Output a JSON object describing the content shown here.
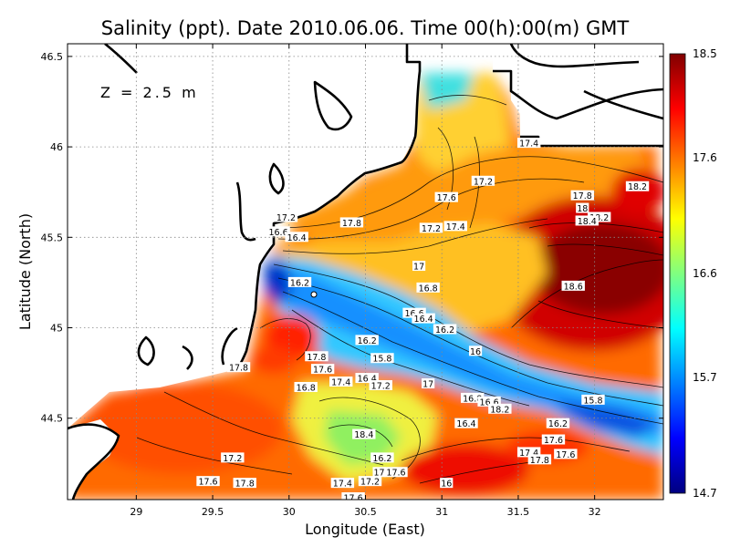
{
  "chart_data": {
    "type": "heatmap",
    "title": "Salinity (ppt). Date 2010.06.06. Time 00(h):00(m) GMT",
    "annotation": "Z = 2.5 m",
    "xlabel": "Longitude (East)",
    "ylabel": "Latitude (North)",
    "xlim": [
      28.55,
      32.45
    ],
    "ylim": [
      44.05,
      46.57
    ],
    "x_ticks": [
      29,
      29.5,
      30,
      30.5,
      31,
      31.5,
      32
    ],
    "x_tick_labels": [
      "29",
      "29.5",
      "30",
      "30.5",
      "31",
      "31.5",
      "32"
    ],
    "y_ticks": [
      44.5,
      45,
      45.5,
      46,
      46.5
    ],
    "y_tick_labels": [
      "44.5",
      "45",
      "45.5",
      "46",
      "46.5"
    ],
    "grid": true,
    "colorbar": {
      "min": 14.7,
      "max": 18.5,
      "ticks": [
        14.7,
        15.7,
        16.6,
        17.6,
        18.5
      ],
      "tick_labels": [
        "14.7",
        "15.7",
        "16.6",
        "17.6",
        "18.5"
      ],
      "colors": [
        "#000080",
        "#0000ff",
        "#0080ff",
        "#00ffff",
        "#80ff80",
        "#ffff00",
        "#ff8000",
        "#ff0000",
        "#800000"
      ]
    },
    "contour_labels": [
      {
        "text": "17.4",
        "lon": 31.57,
        "lat": 46.02
      },
      {
        "text": "17.2",
        "lon": 31.27,
        "lat": 45.81
      },
      {
        "text": "17.6",
        "lon": 31.03,
        "lat": 45.72
      },
      {
        "text": "17.8",
        "lon": 31.92,
        "lat": 45.73
      },
      {
        "text": "18.2",
        "lon": 32.28,
        "lat": 45.78
      },
      {
        "text": "18",
        "lon": 31.92,
        "lat": 45.66
      },
      {
        "text": "18.2",
        "lon": 32.03,
        "lat": 45.61
      },
      {
        "text": "18.4",
        "lon": 31.95,
        "lat": 45.59
      },
      {
        "text": "17.2",
        "lon": 29.98,
        "lat": 45.61
      },
      {
        "text": "17.8",
        "lon": 30.41,
        "lat": 45.58
      },
      {
        "text": "16.6",
        "lon": 29.93,
        "lat": 45.53
      },
      {
        "text": "16.4",
        "lon": 30.05,
        "lat": 45.5
      },
      {
        "text": "17.2",
        "lon": 30.93,
        "lat": 45.55
      },
      {
        "text": "17.4",
        "lon": 31.09,
        "lat": 45.56
      },
      {
        "text": "17",
        "lon": 30.85,
        "lat": 45.34
      },
      {
        "text": "16.2",
        "lon": 30.07,
        "lat": 45.25
      },
      {
        "text": "16.8",
        "lon": 30.91,
        "lat": 45.22
      },
      {
        "text": "18.6",
        "lon": 31.86,
        "lat": 45.23
      },
      {
        "text": "16.6",
        "lon": 30.82,
        "lat": 45.08
      },
      {
        "text": "16.4",
        "lon": 30.88,
        "lat": 45.05
      },
      {
        "text": "16.2",
        "lon": 31.02,
        "lat": 44.99
      },
      {
        "text": "16.2",
        "lon": 30.51,
        "lat": 44.93
      },
      {
        "text": "16",
        "lon": 31.22,
        "lat": 44.87
      },
      {
        "text": "17.8",
        "lon": 30.18,
        "lat": 44.84
      },
      {
        "text": "15.8",
        "lon": 30.61,
        "lat": 44.83
      },
      {
        "text": "17.8",
        "lon": 29.67,
        "lat": 44.78
      },
      {
        "text": "17.6",
        "lon": 30.22,
        "lat": 44.77
      },
      {
        "text": "16.4",
        "lon": 30.51,
        "lat": 44.72
      },
      {
        "text": "17.4",
        "lon": 30.34,
        "lat": 44.7
      },
      {
        "text": "17.2",
        "lon": 30.6,
        "lat": 44.68
      },
      {
        "text": "16.8",
        "lon": 30.11,
        "lat": 44.67
      },
      {
        "text": "17",
        "lon": 30.91,
        "lat": 44.69
      },
      {
        "text": "16.8",
        "lon": 31.2,
        "lat": 44.61
      },
      {
        "text": "16.6",
        "lon": 31.31,
        "lat": 44.59
      },
      {
        "text": "15.8",
        "lon": 31.99,
        "lat": 44.6
      },
      {
        "text": "18.2",
        "lon": 31.38,
        "lat": 44.55
      },
      {
        "text": "16.4",
        "lon": 31.16,
        "lat": 44.47
      },
      {
        "text": "16.2",
        "lon": 31.76,
        "lat": 44.47
      },
      {
        "text": "18.4",
        "lon": 30.49,
        "lat": 44.41
      },
      {
        "text": "17.6",
        "lon": 31.73,
        "lat": 44.38
      },
      {
        "text": "17.4",
        "lon": 31.57,
        "lat": 44.31
      },
      {
        "text": "17.6",
        "lon": 31.81,
        "lat": 44.3
      },
      {
        "text": "17.2",
        "lon": 29.63,
        "lat": 44.28
      },
      {
        "text": "16.2",
        "lon": 30.61,
        "lat": 44.28
      },
      {
        "text": "17.8",
        "lon": 31.64,
        "lat": 44.27
      },
      {
        "text": "17",
        "lon": 30.59,
        "lat": 44.2
      },
      {
        "text": "17.6",
        "lon": 30.7,
        "lat": 44.2
      },
      {
        "text": "17.6",
        "lon": 29.47,
        "lat": 44.15
      },
      {
        "text": "17.8",
        "lon": 29.71,
        "lat": 44.14
      },
      {
        "text": "17.4",
        "lon": 30.35,
        "lat": 44.14
      },
      {
        "text": "17.2",
        "lon": 30.53,
        "lat": 44.15
      },
      {
        "text": "16",
        "lon": 31.03,
        "lat": 44.14
      },
      {
        "text": "17.6",
        "lon": 30.42,
        "lat": 44.06
      }
    ]
  }
}
